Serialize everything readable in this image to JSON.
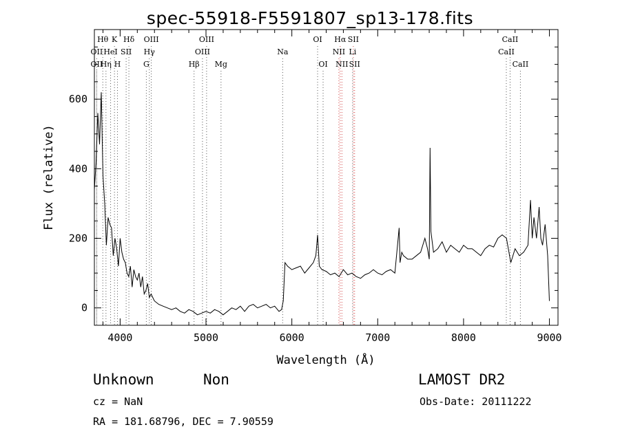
{
  "title": "spec-55918-F5591807_sp13-178.fits",
  "info": {
    "class": "Unknown",
    "subclass": "Non",
    "survey": "LAMOST DR2",
    "cz": "cz = NaN",
    "obs_date": "Obs-Date: 20111222",
    "coords": "RA = 181.68796, DEC =   7.90559"
  },
  "chart_data": {
    "type": "line",
    "title": "spec-55918-F5591807_sp13-178.fits",
    "xlabel": "Wavelength (Å)",
    "ylabel": "Flux (relative)",
    "xlim": [
      3700,
      9100
    ],
    "ylim": [
      -50,
      800
    ],
    "xticks": [
      4000,
      5000,
      6000,
      7000,
      8000,
      9000
    ],
    "yticks": [
      0,
      200,
      400,
      600
    ],
    "grid": false,
    "series": [
      {
        "x": [
          3700,
          3720,
          3740,
          3760,
          3780,
          3800,
          3820,
          3840,
          3860,
          3880,
          3900,
          3920,
          3940,
          3960,
          3980,
          4000,
          4020,
          4040,
          4060,
          4080,
          4100,
          4120,
          4140,
          4160,
          4180,
          4200,
          4220,
          4240,
          4260,
          4280,
          4300,
          4320,
          4340,
          4360,
          4380,
          4400,
          4450,
          4500,
          4550,
          4600,
          4650,
          4700,
          4750,
          4800,
          4850,
          4900,
          4950,
          5000,
          5050,
          5100,
          5150,
          5200,
          5250,
          5300,
          5350,
          5400,
          5450,
          5500,
          5550,
          5600,
          5650,
          5700,
          5750,
          5800,
          5850,
          5880,
          5900,
          5920,
          5950,
          6000,
          6050,
          6100,
          6150,
          6200,
          6250,
          6280,
          6300,
          6320,
          6350,
          6400,
          6450,
          6500,
          6550,
          6600,
          6650,
          6700,
          6750,
          6800,
          6850,
          6900,
          6950,
          7000,
          7050,
          7100,
          7150,
          7200,
          7250,
          7260,
          7280,
          7300,
          7350,
          7400,
          7450,
          7500,
          7550,
          7580,
          7600,
          7610,
          7620,
          7650,
          7700,
          7750,
          7800,
          7850,
          7900,
          7950,
          8000,
          8050,
          8100,
          8150,
          8200,
          8250,
          8300,
          8350,
          8400,
          8450,
          8500,
          8550,
          8600,
          8650,
          8700,
          8750,
          8780,
          8800,
          8820,
          8850,
          8880,
          8900,
          8920,
          8950,
          8980,
          9000
        ],
        "y": [
          340,
          420,
          560,
          470,
          620,
          380,
          300,
          180,
          260,
          240,
          230,
          150,
          200,
          170,
          120,
          200,
          160,
          140,
          130,
          100,
          90,
          120,
          60,
          110,
          90,
          80,
          100,
          60,
          90,
          40,
          50,
          70,
          30,
          40,
          30,
          20,
          10,
          5,
          0,
          -5,
          0,
          -10,
          -15,
          -5,
          -10,
          -20,
          -15,
          -10,
          -15,
          -5,
          -10,
          -20,
          -10,
          0,
          -5,
          5,
          -10,
          5,
          10,
          0,
          5,
          10,
          0,
          5,
          -10,
          -5,
          20,
          130,
          120,
          110,
          115,
          120,
          100,
          115,
          130,
          150,
          210,
          120,
          110,
          105,
          95,
          100,
          90,
          110,
          95,
          100,
          90,
          85,
          95,
          100,
          110,
          100,
          95,
          105,
          110,
          100,
          230,
          130,
          160,
          150,
          140,
          140,
          150,
          160,
          200,
          170,
          140,
          460,
          220,
          160,
          170,
          190,
          160,
          180,
          170,
          160,
          180,
          170,
          170,
          160,
          150,
          170,
          180,
          175,
          200,
          210,
          200,
          130,
          170,
          150,
          160,
          180,
          310,
          200,
          260,
          200,
          290,
          200,
          180,
          240,
          150,
          20
        ]
      }
    ],
    "line_ids": [
      {
        "label": "OII",
        "x": 3727,
        "row": 2
      },
      {
        "label": "Hθ",
        "x": 3798,
        "row": 0
      },
      {
        "label": "OII",
        "x": 3727,
        "row": 1
      },
      {
        "label": "Hη",
        "x": 3835,
        "row": 2
      },
      {
        "label": "K",
        "x": 3934,
        "row": 0
      },
      {
        "label": "HeI",
        "x": 3889,
        "row": 1
      },
      {
        "label": "H",
        "x": 3969,
        "row": 2
      },
      {
        "label": "Hδ",
        "x": 4102,
        "row": 0
      },
      {
        "label": "SII",
        "x": 4070,
        "row": 1
      },
      {
        "label": "OIII",
        "x": 4363,
        "row": 0
      },
      {
        "label": "Hγ",
        "x": 4340,
        "row": 1
      },
      {
        "label": "G",
        "x": 4305,
        "row": 2
      },
      {
        "label": "OIII",
        "x": 5007,
        "row": 0
      },
      {
        "label": "OIII",
        "x": 4959,
        "row": 1
      },
      {
        "label": "Hβ",
        "x": 4861,
        "row": 2
      },
      {
        "label": "Mg",
        "x": 5175,
        "row": 2
      },
      {
        "label": "Na",
        "x": 5893,
        "row": 1
      },
      {
        "label": "OI",
        "x": 6300,
        "row": 0
      },
      {
        "label": "OI",
        "x": 6364,
        "row": 2
      },
      {
        "label": "Hα",
        "x": 6563,
        "row": 0
      },
      {
        "label": "SII",
        "x": 6716,
        "row": 0
      },
      {
        "label": "NII",
        "x": 6548,
        "row": 1
      },
      {
        "label": "Li",
        "x": 6708,
        "row": 1
      },
      {
        "label": "NII",
        "x": 6583,
        "row": 2
      },
      {
        "label": "SII",
        "x": 6731,
        "row": 2
      },
      {
        "label": "CaII",
        "x": 8542,
        "row": 0
      },
      {
        "label": "CaII",
        "x": 8498,
        "row": 1
      },
      {
        "label": "CaII",
        "x": 8662,
        "row": 2
      }
    ]
  }
}
